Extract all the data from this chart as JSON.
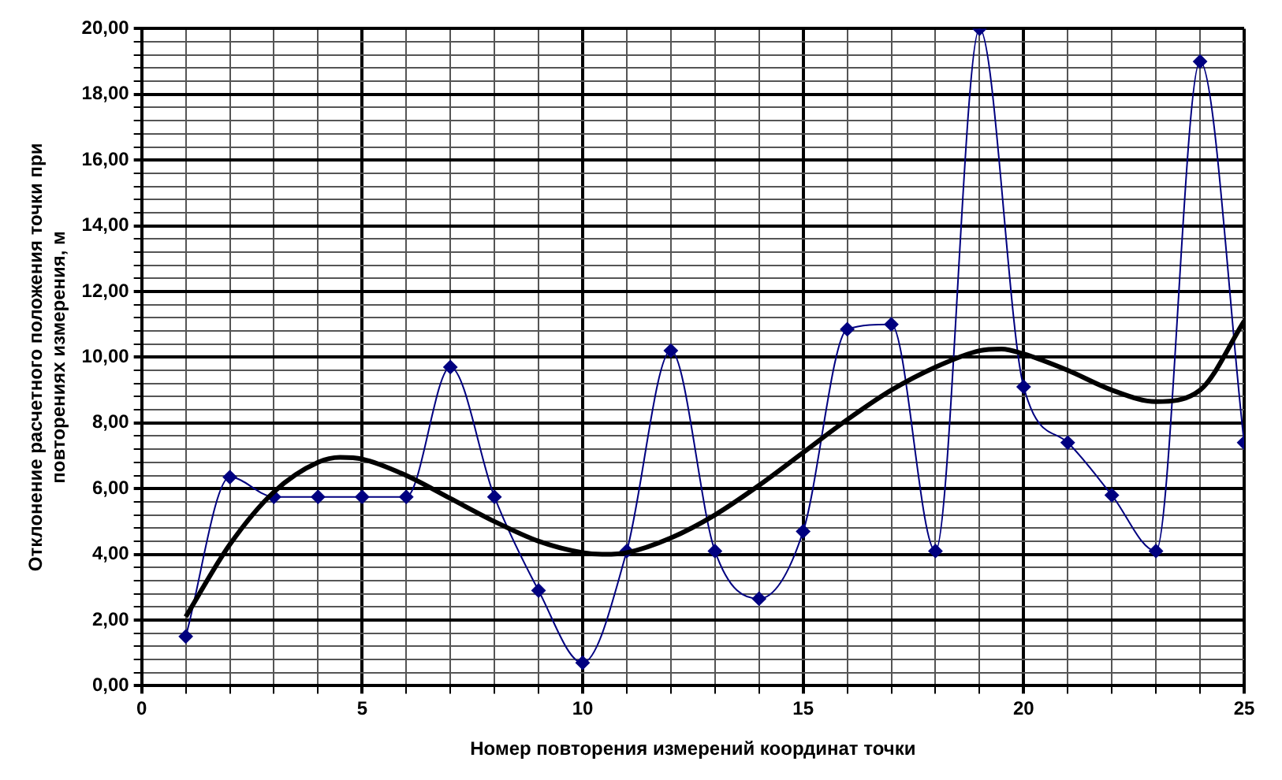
{
  "chart_data": {
    "type": "line",
    "xlabel": "Номер повторения измерений координат точки",
    "ylabel": "Отклонение расчетного положения точки при\nповторениях измерения, м",
    "xlim": [
      0,
      25
    ],
    "ylim": [
      0,
      20
    ],
    "xticks": [
      {
        "value": 0,
        "label": "0"
      },
      {
        "value": 1,
        "label": null
      },
      {
        "value": 2,
        "label": null
      },
      {
        "value": 3,
        "label": null
      },
      {
        "value": 4,
        "label": null
      },
      {
        "value": 5,
        "label": "5"
      },
      {
        "value": 6,
        "label": null
      },
      {
        "value": 7,
        "label": null
      },
      {
        "value": 8,
        "label": null
      },
      {
        "value": 9,
        "label": null
      },
      {
        "value": 10,
        "label": "10"
      },
      {
        "value": 11,
        "label": null
      },
      {
        "value": 12,
        "label": null
      },
      {
        "value": 13,
        "label": null
      },
      {
        "value": 14,
        "label": null
      },
      {
        "value": 15,
        "label": "15"
      },
      {
        "value": 16,
        "label": null
      },
      {
        "value": 17,
        "label": null
      },
      {
        "value": 18,
        "label": null
      },
      {
        "value": 19,
        "label": null
      },
      {
        "value": 20,
        "label": "20"
      },
      {
        "value": 21,
        "label": null
      },
      {
        "value": 22,
        "label": null
      },
      {
        "value": 23,
        "label": null
      },
      {
        "value": 24,
        "label": null
      },
      {
        "value": 25,
        "label": "25"
      }
    ],
    "yticks": [
      {
        "value": 0,
        "label": "0,00"
      },
      {
        "value": 0.4,
        "label": null
      },
      {
        "value": 0.8,
        "label": null
      },
      {
        "value": 1.2,
        "label": null
      },
      {
        "value": 1.6,
        "label": null
      },
      {
        "value": 2,
        "label": "2,00"
      },
      {
        "value": 2.4,
        "label": null
      },
      {
        "value": 2.8,
        "label": null
      },
      {
        "value": 3.2,
        "label": null
      },
      {
        "value": 3.6,
        "label": null
      },
      {
        "value": 4,
        "label": "4,00"
      },
      {
        "value": 4.4,
        "label": null
      },
      {
        "value": 4.8,
        "label": null
      },
      {
        "value": 5.2,
        "label": null
      },
      {
        "value": 5.6,
        "label": null
      },
      {
        "value": 6,
        "label": "6,00"
      },
      {
        "value": 6.4,
        "label": null
      },
      {
        "value": 6.8,
        "label": null
      },
      {
        "value": 7.2,
        "label": null
      },
      {
        "value": 7.6,
        "label": null
      },
      {
        "value": 8,
        "label": "8,00"
      },
      {
        "value": 8.4,
        "label": null
      },
      {
        "value": 8.8,
        "label": null
      },
      {
        "value": 9.2,
        "label": null
      },
      {
        "value": 9.6,
        "label": null
      },
      {
        "value": 10,
        "label": "10,00"
      },
      {
        "value": 10.4,
        "label": null
      },
      {
        "value": 10.8,
        "label": null
      },
      {
        "value": 11.2,
        "label": null
      },
      {
        "value": 11.6,
        "label": null
      },
      {
        "value": 12,
        "label": "12,00"
      },
      {
        "value": 12.4,
        "label": null
      },
      {
        "value": 12.8,
        "label": null
      },
      {
        "value": 13.2,
        "label": null
      },
      {
        "value": 13.6,
        "label": null
      },
      {
        "value": 14,
        "label": "14,00"
      },
      {
        "value": 14.4,
        "label": null
      },
      {
        "value": 14.8,
        "label": null
      },
      {
        "value": 15.2,
        "label": null
      },
      {
        "value": 15.6,
        "label": null
      },
      {
        "value": 16,
        "label": "16,00"
      },
      {
        "value": 16.4,
        "label": null
      },
      {
        "value": 16.8,
        "label": null
      },
      {
        "value": 17.2,
        "label": null
      },
      {
        "value": 17.6,
        "label": null
      },
      {
        "value": 18,
        "label": "18,00"
      },
      {
        "value": 18.4,
        "label": null
      },
      {
        "value": 18.8,
        "label": null
      },
      {
        "value": 19.2,
        "label": null
      },
      {
        "value": 19.6,
        "label": null
      },
      {
        "value": 20,
        "label": "20,00"
      }
    ],
    "grid": true,
    "legend": false,
    "series": [
      {
        "color": "#000080",
        "marker": "diamond",
        "x": [
          1,
          2,
          3,
          4,
          5,
          6,
          7,
          8,
          9,
          10,
          11,
          12,
          13,
          14,
          15,
          16,
          17,
          18,
          19,
          20,
          21,
          22,
          23,
          24,
          25
        ],
        "values": [
          1.5,
          6.35,
          5.75,
          5.75,
          5.75,
          5.75,
          9.7,
          5.75,
          2.9,
          0.7,
          4.1,
          10.2,
          4.1,
          2.65,
          4.7,
          10.85,
          11.0,
          4.1,
          20.0,
          9.1,
          7.4,
          5.8,
          4.1,
          19.0,
          7.4
        ]
      },
      {
        "color": "#000000",
        "marker": "none",
        "x": [
          1,
          2,
          3,
          4,
          4.5,
          5,
          6,
          7,
          8,
          9,
          10,
          10.5,
          11,
          12,
          13,
          14,
          15,
          16,
          17,
          18,
          19,
          19.5,
          20,
          21,
          22,
          23,
          24,
          25
        ],
        "values": [
          2.1,
          4.3,
          5.9,
          6.8,
          6.95,
          6.9,
          6.4,
          5.7,
          5.0,
          4.4,
          4.05,
          4.0,
          4.05,
          4.5,
          5.2,
          6.1,
          7.1,
          8.1,
          9.0,
          9.7,
          10.2,
          10.25,
          10.1,
          9.6,
          9.0,
          8.65,
          9.0,
          11.1
        ]
      }
    ]
  }
}
